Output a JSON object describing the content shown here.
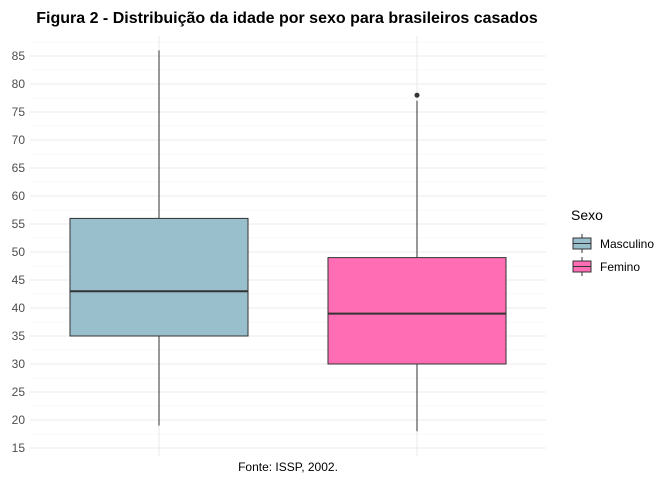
{
  "chart_data": {
    "type": "boxplot",
    "title": "Figura 2 - Distribuição da idade por sexo para brasileiros casados",
    "caption": "Fonte: ISSP, 2002.",
    "xlabel": "",
    "ylabel": "",
    "ylim": [
      15,
      85
    ],
    "y_ticks": [
      15,
      20,
      25,
      30,
      35,
      40,
      45,
      50,
      55,
      60,
      65,
      70,
      75,
      80,
      85
    ],
    "grid": true,
    "legend": {
      "title": "Sexo",
      "position": "right"
    },
    "series": [
      {
        "name": "Masculino",
        "color": "#99BFCD",
        "min": 19,
        "q1": 35,
        "median": 43,
        "q3": 56,
        "max": 86,
        "outliers": []
      },
      {
        "name": "Femino",
        "color": "#FF6EB4",
        "min": 18,
        "q1": 30,
        "median": 39,
        "q3": 49,
        "max": 77,
        "outliers": [
          78
        ]
      }
    ]
  }
}
